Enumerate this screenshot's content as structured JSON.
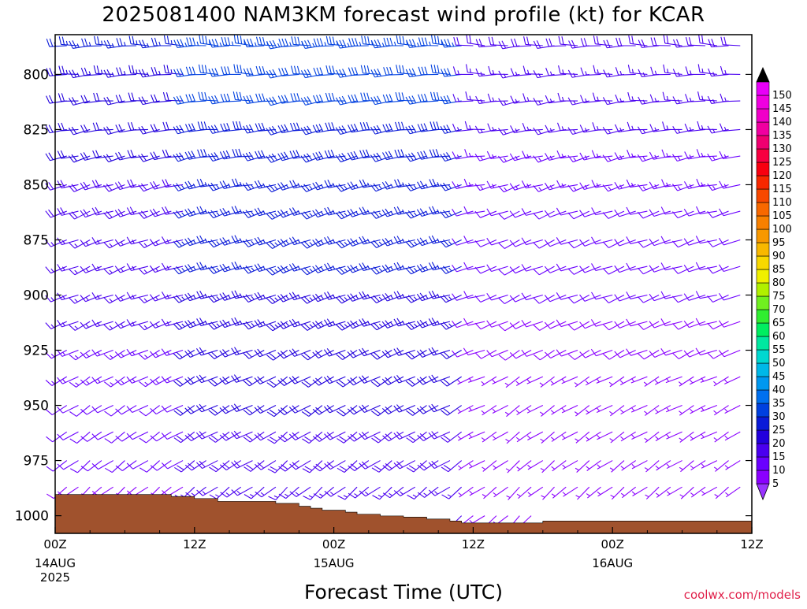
{
  "chart_data": {
    "type": "wind-barb-time-height",
    "title": "2025081400 NAM3KM forecast wind profile (kt) for KCAR",
    "xlabel": "Forecast Time (UTC)",
    "ylabel": "",
    "credit": "coolwx.com/models",
    "x_ticks": [
      {
        "hour": 0,
        "line1": "00Z",
        "line2": "14AUG",
        "line3": "2025"
      },
      {
        "hour": 12,
        "line1": "12Z",
        "line2": "",
        "line3": ""
      },
      {
        "hour": 24,
        "line1": "00Z",
        "line2": "15AUG",
        "line3": ""
      },
      {
        "hour": 36,
        "line1": "12Z",
        "line2": "",
        "line3": ""
      },
      {
        "hour": 48,
        "line1": "00Z",
        "line2": "16AUG",
        "line3": ""
      },
      {
        "hour": 60,
        "line1": "12Z",
        "line2": "",
        "line3": ""
      }
    ],
    "xlim_hours": [
      0,
      60
    ],
    "y_ticks": [
      800,
      825,
      850,
      875,
      900,
      925,
      950,
      975,
      1000
    ],
    "ylim_hpa": [
      1008,
      782
    ],
    "colorbar": {
      "levels": [
        5,
        10,
        15,
        20,
        25,
        30,
        35,
        40,
        45,
        50,
        55,
        60,
        65,
        70,
        75,
        80,
        85,
        90,
        95,
        100,
        105,
        110,
        115,
        120,
        125,
        130,
        135,
        140,
        145,
        150
      ],
      "colors": [
        "#8a00ff",
        "#6a00ff",
        "#4a00f0",
        "#2200dd",
        "#0a1ad8",
        "#0040e0",
        "#0070f0",
        "#0098f0",
        "#00b8e8",
        "#00d8d0",
        "#00e8a0",
        "#00ee60",
        "#30ee30",
        "#70f020",
        "#b0f000",
        "#f0f000",
        "#f8d800",
        "#f8b800",
        "#f89800",
        "#f88000",
        "#f86800",
        "#f84800",
        "#f82800",
        "#f80010",
        "#f80040",
        "#f00070",
        "#f000a0",
        "#f000c8",
        "#f000e0",
        "#e800f8"
      ],
      "top_color": "#000000",
      "bottom_color": "#9933ff"
    },
    "terrain": {
      "color": "#a0522d",
      "surface_pressure": [
        {
          "hour": 0,
          "hpa": 990.4
        },
        {
          "hour": 3,
          "hpa": 990.4
        },
        {
          "hour": 6,
          "hpa": 990.4
        },
        {
          "hour": 9,
          "hpa": 990.4
        },
        {
          "hour": 10,
          "hpa": 991.3
        },
        {
          "hour": 12,
          "hpa": 992.2
        },
        {
          "hour": 13,
          "hpa": 992.2
        },
        {
          "hour": 14,
          "hpa": 993.5
        },
        {
          "hour": 17,
          "hpa": 993.5
        },
        {
          "hour": 19,
          "hpa": 994.4
        },
        {
          "hour": 21,
          "hpa": 995.7
        },
        {
          "hour": 22,
          "hpa": 996.6
        },
        {
          "hour": 23,
          "hpa": 997.5
        },
        {
          "hour": 25,
          "hpa": 998.4
        },
        {
          "hour": 26,
          "hpa": 999.3
        },
        {
          "hour": 28,
          "hpa": 1000.1
        },
        {
          "hour": 30,
          "hpa": 1000.6
        },
        {
          "hour": 32,
          "hpa": 1001.5
        },
        {
          "hour": 34,
          "hpa": 1002.4
        },
        {
          "hour": 35,
          "hpa": 1003.3
        },
        {
          "hour": 40,
          "hpa": 1003.3
        },
        {
          "hour": 42,
          "hpa": 1002.4
        },
        {
          "hour": 47,
          "hpa": 1002.4
        },
        {
          "hour": 60,
          "hpa": 1002.4
        }
      ]
    },
    "wind_field": {
      "hour_step": 1,
      "levels_hpa": [
        787,
        800,
        812,
        825,
        837,
        850,
        862,
        875,
        887,
        900,
        912,
        925,
        937,
        950,
        962,
        975,
        987,
        1000
      ],
      "direction_deg_by_level": [
        270,
        268,
        265,
        262,
        258,
        255,
        252,
        250,
        250,
        250,
        248,
        245,
        242,
        240,
        238,
        235,
        232,
        230
      ],
      "speed_kt_by_level": [
        25,
        23,
        22,
        21,
        20,
        19,
        18,
        17,
        17,
        16,
        15,
        14,
        13,
        12,
        11,
        10,
        9,
        8
      ],
      "speed_adjust_by_hour": {
        "0-11": 0,
        "12-35": 8,
        "36-60": -6
      }
    }
  }
}
